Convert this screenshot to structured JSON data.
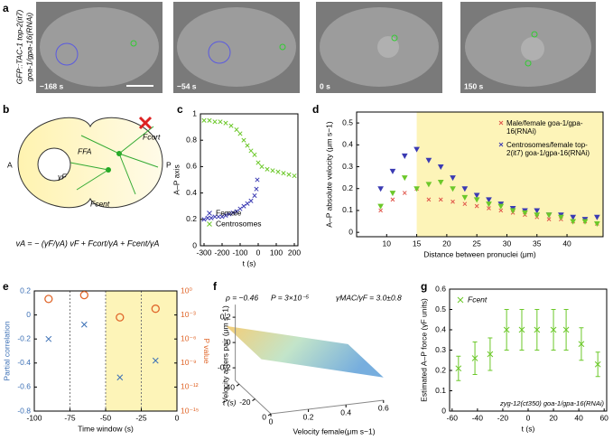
{
  "figure": {
    "panel_labels": [
      "a",
      "b",
      "c",
      "d",
      "e",
      "f",
      "g"
    ]
  },
  "panel_a": {
    "genotype": [
      "GFP::TAC-1 top-2(it7)",
      "goa-1/gpa-16(RNAi)"
    ],
    "times": [
      "−168 s",
      "−54 s",
      "0 s",
      "150 s"
    ]
  },
  "panel_b": {
    "anterior": "A",
    "posterior": "P",
    "gamma": "γF",
    "f_fa": "FFA",
    "f_cort": "Fcort",
    "f_cent": "Fcent",
    "equation": "vA = − (γF/γA) vF + Fcort/γA + Fcent/γA"
  },
  "chart_data": [
    {
      "type": "scatter",
      "xlabel": "t (s)",
      "ylabel": "A–P axis",
      "xlim": [
        -320,
        220
      ],
      "ylim": [
        0,
        1
      ],
      "xticks": [
        -300,
        -200,
        -100,
        0,
        100,
        200
      ],
      "yticks": [
        0,
        0.2,
        0.4,
        0.6,
        0.8,
        1
      ],
      "series": [
        {
          "name": "Female",
          "color": "#3b3bb3",
          "x": [
            -300,
            -280,
            -260,
            -240,
            -220,
            -200,
            -180,
            -160,
            -140,
            -120,
            -100,
            -80,
            -60,
            -40,
            -20,
            -10,
            -5
          ],
          "values": [
            0.2,
            0.21,
            0.21,
            0.22,
            0.22,
            0.22,
            0.23,
            0.24,
            0.25,
            0.26,
            0.28,
            0.3,
            0.32,
            0.34,
            0.38,
            0.43,
            0.5
          ]
        },
        {
          "name": "Centrosomes",
          "color": "#6cc82a",
          "x": [
            -300,
            -270,
            -240,
            -210,
            -180,
            -150,
            -120,
            -100,
            -80,
            -60,
            -40,
            -20,
            0,
            20,
            50,
            80,
            110,
            140,
            170,
            200
          ],
          "values": [
            0.95,
            0.95,
            0.94,
            0.94,
            0.93,
            0.91,
            0.88,
            0.85,
            0.8,
            0.76,
            0.72,
            0.69,
            0.63,
            0.6,
            0.58,
            0.57,
            0.56,
            0.55,
            0.54,
            0.53
          ]
        }
      ]
    },
    {
      "type": "scatter",
      "xlabel": "Distance between pronuclei (μm)",
      "ylabel": "A–P absolute velocity (μm s−1)",
      "xlim": [
        5,
        46
      ],
      "ylim": [
        -0.02,
        0.55
      ],
      "xticks": [
        10,
        15,
        20,
        25,
        30,
        35,
        40
      ],
      "yticks": [
        0,
        0.1,
        0.2,
        0.3,
        0.4,
        0.5
      ],
      "highlight": [
        15,
        46
      ],
      "x": [
        9,
        11,
        13,
        15,
        17,
        19,
        21,
        23,
        25,
        27,
        29,
        31,
        33,
        35,
        37,
        39,
        41,
        43,
        45
      ],
      "series": [
        {
          "name": "Male/female goa-1/gpa-16(RNAi)",
          "color": "#e0554a",
          "values": [
            0.1,
            0.15,
            0.18,
            0.2,
            0.15,
            0.15,
            0.14,
            0.13,
            0.12,
            0.11,
            0.1,
            0.09,
            0.08,
            0.07,
            0.06,
            0.06,
            0.05,
            0.05,
            0.04
          ]
        },
        {
          "name": "Centrosomes/female top-2(it7) goa-1/gpa-16(RNAi)",
          "color": "#3b3bb3",
          "values": [
            0.2,
            0.28,
            0.35,
            0.38,
            0.33,
            0.3,
            0.25,
            0.2,
            0.17,
            0.15,
            0.13,
            0.11,
            0.1,
            0.1,
            0.08,
            0.08,
            0.07,
            0.06,
            0.07
          ]
        },
        {
          "color": "#6cc82a",
          "values": [
            0.12,
            0.18,
            0.25,
            0.2,
            0.22,
            0.23,
            0.2,
            0.16,
            0.15,
            0.13,
            0.12,
            0.1,
            0.09,
            0.08,
            0.08,
            0.07,
            0.05,
            0.05,
            0.04
          ]
        }
      ]
    },
    {
      "type": "dual",
      "xlabel": "Time window (s)",
      "ylabel": "Partial correlation",
      "y2label": "P value",
      "xlim": [
        -100,
        0
      ],
      "ylim": [
        -0.8,
        0.2
      ],
      "y2lim": [
        1e-15,
        1
      ],
      "y2log": true,
      "xticks": [
        -100,
        -75,
        -50,
        -25,
        0
      ],
      "yticks": [
        0.2,
        0,
        -0.2,
        -0.4,
        -0.6,
        -0.8
      ],
      "y2ticks": [
        {
          "value": 1,
          "label": "10⁰"
        },
        {
          "value": 0.001,
          "label": "10⁻³"
        },
        {
          "value": 1e-06,
          "label": "10⁻⁶"
        },
        {
          "value": 1e-09,
          "label": "10⁻⁹"
        },
        {
          "value": 1e-12,
          "label": "10⁻¹²"
        },
        {
          "value": 1e-15,
          "label": "10⁻¹⁵"
        }
      ],
      "highlight": [
        -50,
        0
      ],
      "vlines": [
        -75,
        -50,
        -25
      ],
      "x": [
        -90,
        -65,
        -40,
        -15
      ],
      "series": [
        {
          "color": "#3b6fb5",
          "values": [
            -0.2,
            -0.08,
            -0.52,
            -0.38
          ]
        },
        {
          "color": "#e0662a",
          "axis": "y2",
          "values": [
            0.1,
            0.3,
            0.0005,
            0.006
          ]
        }
      ]
    },
    {
      "type": "surface3d",
      "annotations": [
        "ρ = −0.46",
        "P = 3×10⁻⁵",
        "γMAC/γF = 3.0±0.8"
      ],
      "zlabel": "Velocity asters pair (μm s−1)",
      "tlabel": "t (s)",
      "xlabel": "Velocity female(μm s−1)",
      "zticks": [
        0.2,
        0,
        -0.2
      ],
      "tticks": [
        -40,
        -20,
        0
      ],
      "xticks": [
        0,
        0.2,
        0.4,
        0.6
      ]
    },
    {
      "type": "errorbar",
      "legend": "Fcent",
      "ylabel": "Estimated A–P force (γF units)",
      "xlabel": "t (s)",
      "annotation": "zyg-12(ct350) goa-1/gpa-16(RNAi)",
      "xlim": [
        -62,
        62
      ],
      "ylim": [
        0,
        0.6
      ],
      "xticks": [
        -60,
        -40,
        -20,
        0,
        20,
        40,
        60
      ],
      "yticks": [
        0,
        0.1,
        0.2,
        0.3,
        0.4,
        0.5,
        0.6
      ],
      "color": "#6cc82a",
      "x": [
        -55,
        -42,
        -30,
        -17,
        -5,
        7,
        20,
        30,
        42,
        55
      ],
      "values": [
        0.21,
        0.26,
        0.28,
        0.4,
        0.4,
        0.4,
        0.4,
        0.4,
        0.33,
        0.23
      ],
      "errors": [
        0.06,
        0.08,
        0.08,
        0.1,
        0.1,
        0.1,
        0.1,
        0.1,
        0.08,
        0.06
      ]
    }
  ]
}
